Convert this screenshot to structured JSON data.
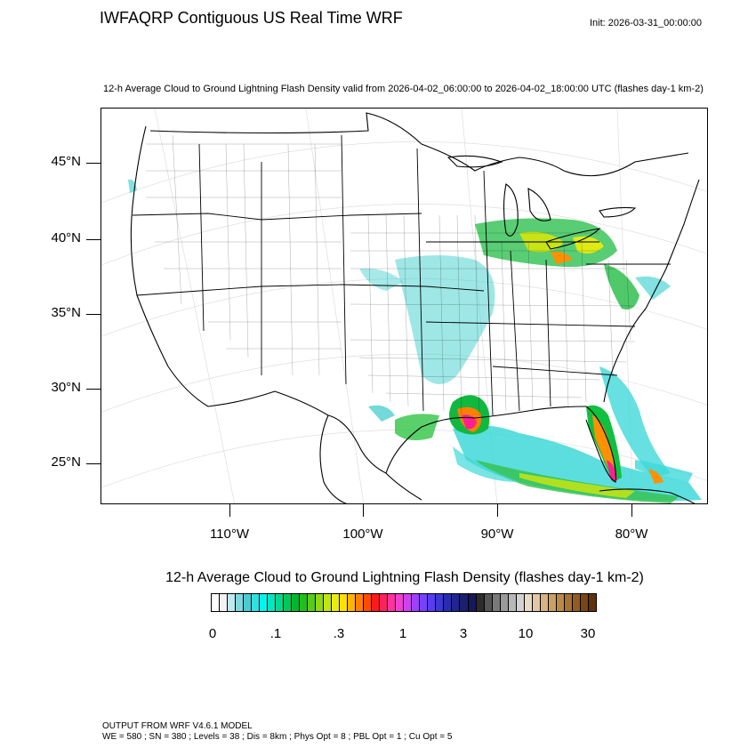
{
  "header": {
    "title": "IWFAQRP Contiguous US Real Time WRF",
    "init": "Init: 2026-03-31_00:00:00"
  },
  "plot": {
    "subtitle": "12-h Average Cloud to Ground Lightning Flash Density valid from 2026-04-02_06:00:00 to 2026-04-02_18:00:00 UTC   (flashes day-1 km-2)"
  },
  "map": {
    "region": "Contiguous United States",
    "lat_labels": [
      "45°N",
      "40°N",
      "35°N",
      "30°N",
      "25°N"
    ],
    "lon_labels": [
      "110°W",
      "100°W",
      "90°W",
      "80°W"
    ],
    "colors": {
      "land_bg": "#ffffff",
      "boundaries": "#000000",
      "graticule": "#dddddd"
    }
  },
  "legend": {
    "title": "12-h Average Cloud to Ground Lightning Flash Density  (flashes day-1 km-2)",
    "tick_labels": [
      "0",
      ".1",
      ".3",
      "1",
      "3",
      "10",
      "30"
    ],
    "colors": [
      "#ffffff",
      "#f2f2f2",
      "#bfe9ee",
      "#7fd8de",
      "#4ccbd2",
      "#2fe0e0",
      "#00f5f0",
      "#00e6c0",
      "#00d890",
      "#00c85a",
      "#00b830",
      "#1fc01a",
      "#59cc15",
      "#8fd813",
      "#c2e412",
      "#e8ec12",
      "#ffe000",
      "#ffb400",
      "#ff8000",
      "#ff4b00",
      "#ff1a1a",
      "#ff2060",
      "#ff30a0",
      "#f040d0",
      "#d040f0",
      "#a040ff",
      "#7a40ff",
      "#5a3cf0",
      "#3c38d0",
      "#2a2cb0",
      "#202590",
      "#1b1f6e",
      "#16185a",
      "#2c2c2c",
      "#555555",
      "#7a7a7a",
      "#9a9a9a",
      "#b8b8b8",
      "#d2d2d2",
      "#e8dcc8",
      "#e2c8a4",
      "#d8b284",
      "#cca064",
      "#bc8a48",
      "#a87232",
      "#925c22",
      "#7a4616",
      "#62320c"
    ]
  },
  "footer": {
    "line1": "OUTPUT FROM WRF V4.6.1 MODEL",
    "line2": "WE = 580 ; SN = 380 ; Levels = 38 ; Dis = 8km ; Phys Opt = 8 ; PBL Opt = 1 ; Cu Opt = 5"
  }
}
